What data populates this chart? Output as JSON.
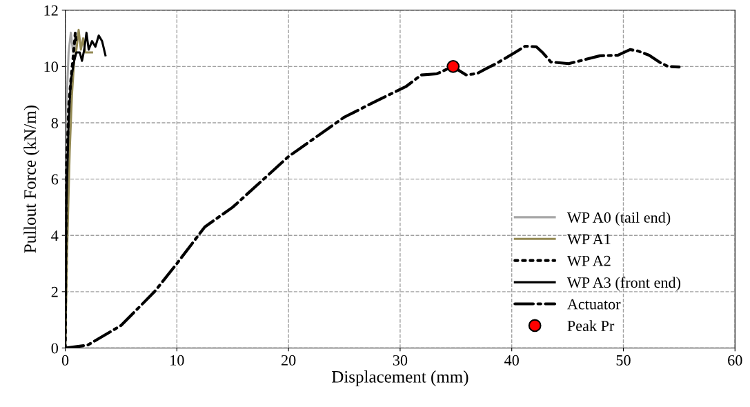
{
  "chart_data": {
    "type": "line",
    "xlabel": "Displacement (mm)",
    "ylabel": "Pullout Force (kN/m)",
    "xlim": [
      0,
      60
    ],
    "xticks": [
      0,
      10,
      20,
      30,
      40,
      50,
      60
    ],
    "ylim": [
      0,
      12
    ],
    "yticks": [
      0,
      2,
      4,
      6,
      8,
      10,
      12
    ],
    "grid": true,
    "legend": "right",
    "series": [
      {
        "name": "WP A0 (tail end)",
        "color": "#a6a6a6",
        "line_style": "solid",
        "x": [
          0,
          0.05,
          0.2,
          0.3,
          0.5,
          0.7,
          0.9,
          1.0
        ],
        "values": [
          0,
          8,
          9.5,
          10.5,
          11.2,
          10.5,
          11.0,
          10.5
        ]
      },
      {
        "name": "WP A1",
        "color": "#948a54",
        "line_style": "solid",
        "x": [
          0,
          0.2,
          0.4,
          0.6,
          0.8,
          1.0,
          1.2,
          1.4,
          1.6,
          1.8,
          2.4
        ],
        "values": [
          0,
          4,
          7,
          9,
          10.2,
          10.6,
          11.3,
          10.6,
          11.0,
          10.5,
          10.5
        ]
      },
      {
        "name": "WP A2",
        "color": "#000000",
        "line_style": "dotted",
        "x": [
          0,
          0.1,
          0.3,
          0.5,
          0.7,
          0.9,
          1.0
        ],
        "values": [
          0,
          6,
          8.5,
          9.5,
          10.3,
          11.2,
          10.8
        ]
      },
      {
        "name": "WP A3 (front end)",
        "color": "#000000",
        "line_style": "solid",
        "x": [
          0,
          0.1,
          0.3,
          0.5,
          0.8,
          1.0,
          1.3,
          1.5,
          1.7,
          1.9,
          2.1,
          2.4,
          2.7,
          3.0,
          3.3,
          3.6
        ],
        "values": [
          0,
          5,
          8,
          9.5,
          10.2,
          10.5,
          10.5,
          10.2,
          10.6,
          11.2,
          10.6,
          10.9,
          10.7,
          11.1,
          10.9,
          10.4
        ]
      },
      {
        "name": "Actuator",
        "color": "#000000",
        "line_style": "dashdot",
        "x": [
          0,
          2,
          5,
          8,
          10,
          12.5,
          15,
          17.5,
          20,
          22.5,
          25,
          28,
          30.5,
          31.9,
          33.3,
          34.7,
          35.9,
          36.9,
          37.6,
          38.6,
          40.3,
          41.2,
          42.2,
          42.8,
          43.5,
          45.1,
          47.9,
          49.5,
          50.6,
          51.3,
          52.3,
          53.3,
          54,
          55
        ],
        "values": [
          0,
          0.1,
          0.8,
          2,
          3,
          4.3,
          5.0,
          5.9,
          6.8,
          7.5,
          8.2,
          8.8,
          9.28,
          9.7,
          9.74,
          10.0,
          9.7,
          9.75,
          9.9,
          10.1,
          10.5,
          10.72,
          10.7,
          10.48,
          10.16,
          10.1,
          10.38,
          10.4,
          10.6,
          10.55,
          10.4,
          10.14,
          10.0,
          9.98
        ]
      },
      {
        "name": "Peak Pr",
        "type": "scatter",
        "color": "#ff0000",
        "marker": "circle",
        "x": [
          34.75
        ],
        "values": [
          10.0
        ]
      }
    ]
  }
}
